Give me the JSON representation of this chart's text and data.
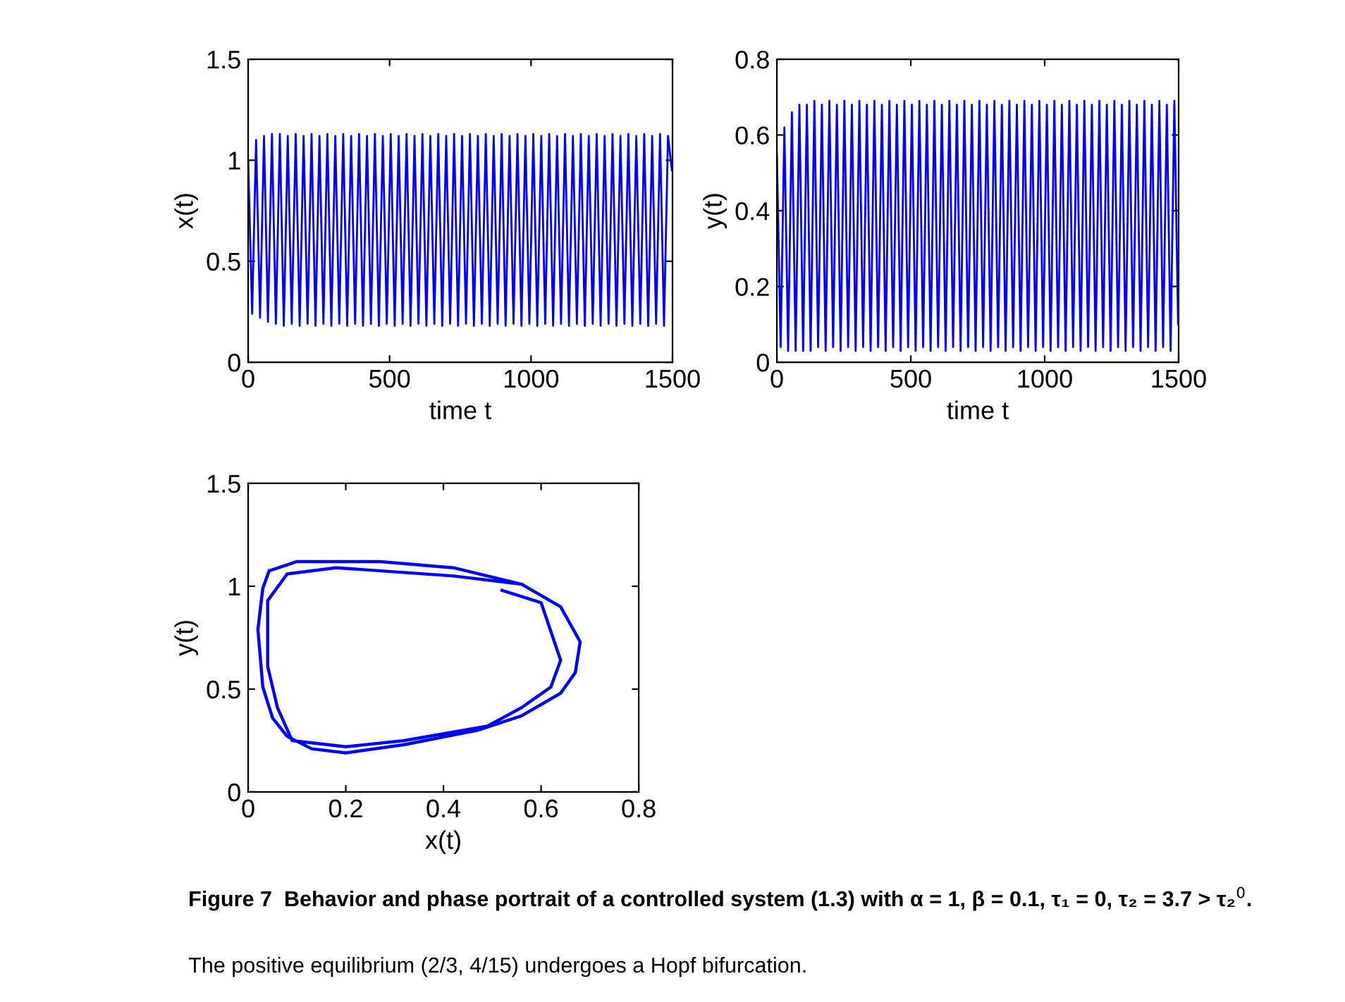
{
  "chart_data": [
    {
      "type": "line",
      "xlabel": "time t",
      "ylabel": "x(t)",
      "xlim": [
        0,
        1500
      ],
      "ylim": [
        0,
        1.5
      ],
      "xticks": [
        0,
        500,
        1000,
        1500
      ],
      "yticks": [
        0,
        0.5,
        1,
        1.5
      ],
      "annotations": [
        "Figure 7  Behavior and phase portrait of a controlled system (1.3) with α = 1, β = 0.1, τ₁ = 0, τ₂ = 3.7 > τ₂$^{0}$.",
        "The positive equilibrium (2/3, 4/15) undergoes a Hopf bifurcation."
      ],
      "series": [
        {
          "color": "#0000ff",
          "x": [
            0,
            14,
            28,
            42,
            56,
            70,
            84,
            98,
            112,
            126,
            140,
            154,
            168,
            182,
            196,
            210,
            224,
            238,
            252,
            266,
            280,
            294,
            308,
            322,
            336,
            350,
            364,
            378,
            392,
            406,
            420,
            434,
            448,
            462,
            476,
            490,
            504,
            518,
            532,
            546,
            560,
            574,
            588,
            602,
            616,
            630,
            644,
            658,
            672,
            686,
            700,
            714,
            728,
            742,
            756,
            770,
            784,
            798,
            812,
            826,
            840,
            854,
            868,
            882,
            896,
            910,
            924,
            938,
            952,
            966,
            980,
            994,
            1008,
            1022,
            1036,
            1050,
            1064,
            1078,
            1092,
            1106,
            1120,
            1134,
            1148,
            1162,
            1176,
            1190,
            1204,
            1218,
            1232,
            1246,
            1260,
            1274,
            1288,
            1302,
            1316,
            1330,
            1344,
            1358,
            1372,
            1386,
            1400,
            1414,
            1428,
            1442,
            1456,
            1470,
            1484,
            1498
          ],
          "values": [
            1.0,
            0.24,
            1.1,
            0.22,
            1.12,
            0.2,
            1.13,
            0.19,
            1.13,
            0.18,
            1.12,
            0.19,
            1.13,
            0.18,
            1.12,
            0.19,
            1.13,
            0.18,
            1.12,
            0.19,
            1.13,
            0.18,
            1.12,
            0.19,
            1.13,
            0.18,
            1.12,
            0.19,
            1.13,
            0.18,
            1.12,
            0.19,
            1.13,
            0.18,
            1.12,
            0.19,
            1.13,
            0.18,
            1.12,
            0.19,
            1.13,
            0.18,
            1.12,
            0.19,
            1.13,
            0.18,
            1.12,
            0.19,
            1.13,
            0.18,
            1.12,
            0.19,
            1.13,
            0.18,
            1.12,
            0.19,
            1.13,
            0.18,
            1.12,
            0.19,
            1.13,
            0.18,
            1.12,
            0.19,
            1.13,
            0.18,
            1.12,
            0.19,
            1.13,
            0.18,
            1.12,
            0.19,
            1.13,
            0.18,
            1.12,
            0.19,
            1.13,
            0.18,
            1.12,
            0.19,
            1.13,
            0.18,
            1.12,
            0.19,
            1.13,
            0.18,
            1.12,
            0.19,
            1.13,
            0.18,
            1.12,
            0.19,
            1.13,
            0.18,
            1.12,
            0.19,
            1.13,
            0.18,
            1.12,
            0.19,
            1.13,
            0.18,
            1.12,
            0.19,
            1.13,
            0.18,
            1.12,
            0.95
          ]
        }
      ]
    },
    {
      "type": "line",
      "xlabel": "time t",
      "ylabel": "y(t)",
      "xlim": [
        0,
        1500
      ],
      "ylim": [
        0,
        0.8
      ],
      "xticks": [
        0,
        500,
        1000,
        1500
      ],
      "yticks": [
        0,
        0.2,
        0.4,
        0.6,
        0.8
      ],
      "series": [
        {
          "color": "#0000ff",
          "x": [
            0,
            14,
            28,
            42,
            56,
            70,
            84,
            98,
            112,
            126,
            140,
            154,
            168,
            182,
            196,
            210,
            224,
            238,
            252,
            266,
            280,
            294,
            308,
            322,
            336,
            350,
            364,
            378,
            392,
            406,
            420,
            434,
            448,
            462,
            476,
            490,
            504,
            518,
            532,
            546,
            560,
            574,
            588,
            602,
            616,
            630,
            644,
            658,
            672,
            686,
            700,
            714,
            728,
            742,
            756,
            770,
            784,
            798,
            812,
            826,
            840,
            854,
            868,
            882,
            896,
            910,
            924,
            938,
            952,
            966,
            980,
            994,
            1008,
            1022,
            1036,
            1050,
            1064,
            1078,
            1092,
            1106,
            1120,
            1134,
            1148,
            1162,
            1176,
            1190,
            1204,
            1218,
            1232,
            1246,
            1260,
            1274,
            1288,
            1302,
            1316,
            1330,
            1344,
            1358,
            1372,
            1386,
            1400,
            1414,
            1428,
            1442,
            1456,
            1470,
            1484,
            1498
          ],
          "values": [
            0.55,
            0.04,
            0.62,
            0.03,
            0.66,
            0.03,
            0.68,
            0.03,
            0.68,
            0.03,
            0.69,
            0.04,
            0.68,
            0.03,
            0.69,
            0.04,
            0.68,
            0.03,
            0.69,
            0.04,
            0.68,
            0.03,
            0.69,
            0.04,
            0.68,
            0.03,
            0.69,
            0.04,
            0.68,
            0.03,
            0.69,
            0.04,
            0.68,
            0.03,
            0.69,
            0.04,
            0.68,
            0.03,
            0.69,
            0.04,
            0.68,
            0.03,
            0.69,
            0.04,
            0.68,
            0.03,
            0.69,
            0.04,
            0.68,
            0.03,
            0.69,
            0.04,
            0.68,
            0.03,
            0.69,
            0.04,
            0.68,
            0.03,
            0.69,
            0.04,
            0.68,
            0.03,
            0.69,
            0.04,
            0.68,
            0.03,
            0.69,
            0.04,
            0.68,
            0.03,
            0.69,
            0.04,
            0.68,
            0.03,
            0.69,
            0.04,
            0.68,
            0.03,
            0.69,
            0.04,
            0.68,
            0.03,
            0.69,
            0.04,
            0.68,
            0.03,
            0.69,
            0.04,
            0.68,
            0.03,
            0.69,
            0.04,
            0.68,
            0.03,
            0.69,
            0.04,
            0.68,
            0.03,
            0.69,
            0.04,
            0.68,
            0.03,
            0.69,
            0.04,
            0.68,
            0.03,
            0.69,
            0.1
          ]
        }
      ]
    },
    {
      "type": "line",
      "xlabel": "x(t)",
      "ylabel": "y(t)",
      "xlim": [
        0,
        0.8
      ],
      "ylim": [
        0,
        1.5
      ],
      "xticks": [
        0,
        0.2,
        0.4,
        0.6,
        0.8
      ],
      "yticks": [
        0,
        0.5,
        1,
        1.5
      ],
      "series": [
        {
          "color": "#0000ff",
          "x": [
            0.52,
            0.6,
            0.64,
            0.62,
            0.56,
            0.49,
            0.32,
            0.2,
            0.09,
            0.06,
            0.04,
            0.04,
            0.08,
            0.18,
            0.42,
            0.56,
            0.64,
            0.68,
            0.67,
            0.64,
            0.56,
            0.47,
            0.32,
            0.2,
            0.13,
            0.08,
            0.05,
            0.03,
            0.02,
            0.03,
            0.043,
            0.1,
            0.27,
            0.42,
            0.56,
            0.64,
            0.68,
            0.67,
            0.64,
            0.56,
            0.47,
            0.32,
            0.2,
            0.13,
            0.08,
            0.05,
            0.03,
            0.02,
            0.03,
            0.043
          ],
          "values": [
            0.98,
            0.92,
            0.64,
            0.51,
            0.41,
            0.32,
            0.25,
            0.22,
            0.25,
            0.41,
            0.61,
            0.93,
            1.06,
            1.09,
            1.05,
            1.01,
            0.9,
            0.73,
            0.58,
            0.48,
            0.37,
            0.3,
            0.23,
            0.19,
            0.21,
            0.27,
            0.36,
            0.51,
            0.79,
            0.99,
            1.075,
            1.12,
            1.12,
            1.09,
            1.01,
            0.9,
            0.73,
            0.58,
            0.48,
            0.37,
            0.3,
            0.23,
            0.19,
            0.21,
            0.27,
            0.36,
            0.51,
            0.79,
            0.99,
            1.075
          ]
        }
      ]
    }
  ]
}
